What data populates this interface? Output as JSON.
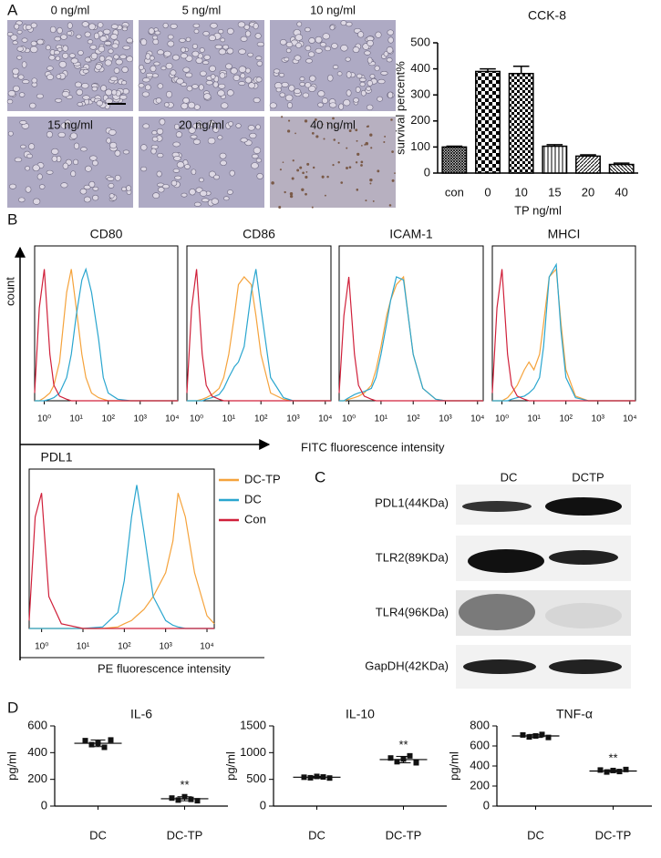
{
  "panel_labels": [
    "A",
    "B",
    "C",
    "D"
  ],
  "micrographs": {
    "labels": [
      "0 ng/ml",
      "5 ng/ml",
      "10 ng/ml",
      "15 ng/ml",
      "20 ng/ml",
      "40 ng/ml"
    ]
  },
  "flow_axes": {
    "y_label": "count",
    "x_label": "FITC fluorescence intensity"
  },
  "western_blot": {
    "lanes": [
      "DC",
      "DCTP"
    ],
    "rows": [
      "PDL1(44KDa)",
      "TLR2(89KDa)",
      "TLR4(96KDa)",
      "GapDH(42KDa)"
    ]
  },
  "chart_data": [
    {
      "type": "bar",
      "title": "CCK-8",
      "y_label": "survival percent%",
      "x_label": "TP ng/ml",
      "categories": [
        "con",
        "0",
        "10",
        "15",
        "20",
        "40"
      ],
      "values": [
        100,
        390,
        382,
        103,
        65,
        33
      ],
      "errors": [
        3,
        10,
        28,
        6,
        5,
        5
      ],
      "color": "#000000",
      "ylim": [
        0,
        500
      ],
      "yticks": [
        0,
        100,
        200,
        300,
        400,
        500
      ]
    },
    {
      "type": "line",
      "title": "CD80",
      "x_log": true,
      "xlim": [
        0.5,
        15000
      ],
      "xticks": [
        {
          "value": 1,
          "label": "10⁰"
        },
        {
          "value": 10,
          "label": "10¹"
        },
        {
          "value": 100,
          "label": "10²"
        },
        {
          "value": 1000,
          "label": "10³"
        },
        {
          "value": 10000,
          "label": "10⁴"
        }
      ],
      "ylim": [
        0,
        100
      ],
      "x": [
        0.5,
        0.7,
        1,
        1.5,
        2,
        3,
        5,
        7,
        10,
        15,
        20,
        30,
        50,
        70,
        100,
        200,
        500,
        1000,
        15000
      ],
      "series": [
        {
          "color": "#f5a33c",
          "values": [
            0,
            0,
            2,
            5,
            10,
            25,
            70,
            85,
            60,
            30,
            15,
            5,
            2,
            1,
            0,
            0,
            0,
            0,
            0
          ]
        },
        {
          "color": "#2aa6cf",
          "values": [
            0,
            0,
            0,
            1,
            2,
            5,
            15,
            30,
            55,
            78,
            85,
            70,
            40,
            15,
            5,
            1,
            0,
            0,
            0
          ]
        },
        {
          "color": "#d0203a",
          "values": [
            5,
            60,
            85,
            30,
            10,
            3,
            1,
            0,
            0,
            0,
            0,
            0,
            0,
            0,
            0,
            0,
            0,
            0,
            0
          ]
        }
      ]
    },
    {
      "type": "line",
      "title": "CD86",
      "x_log": true,
      "xlim": [
        0.5,
        15000
      ],
      "xticks": [
        {
          "value": 1,
          "label": "10⁰"
        },
        {
          "value": 10,
          "label": "10¹"
        },
        {
          "value": 100,
          "label": "10²"
        },
        {
          "value": 1000,
          "label": "10³"
        },
        {
          "value": 10000,
          "label": "10⁴"
        }
      ],
      "ylim": [
        0,
        100
      ],
      "x": [
        0.5,
        0.7,
        1,
        1.5,
        2,
        3,
        5,
        7,
        10,
        15,
        20,
        30,
        50,
        70,
        100,
        200,
        500,
        1000,
        15000
      ],
      "series": [
        {
          "color": "#f5a33c",
          "values": [
            0,
            0,
            0,
            1,
            2,
            4,
            8,
            15,
            30,
            55,
            75,
            80,
            75,
            55,
            30,
            5,
            1,
            0,
            0
          ]
        },
        {
          "color": "#2aa6cf",
          "values": [
            0,
            0,
            0,
            0,
            1,
            2,
            4,
            8,
            15,
            22,
            25,
            35,
            70,
            85,
            60,
            15,
            2,
            0,
            0
          ]
        },
        {
          "color": "#d0203a",
          "values": [
            5,
            60,
            85,
            30,
            10,
            3,
            1,
            0,
            0,
            0,
            0,
            0,
            0,
            0,
            0,
            0,
            0,
            0,
            0
          ]
        }
      ]
    },
    {
      "type": "line",
      "title": "ICAM-1",
      "x_log": true,
      "xlim": [
        0.5,
        15000
      ],
      "xticks": [
        {
          "value": 1,
          "label": "10⁰"
        },
        {
          "value": 10,
          "label": "10¹"
        },
        {
          "value": 100,
          "label": "10²"
        },
        {
          "value": 1000,
          "label": "10³"
        },
        {
          "value": 10000,
          "label": "10⁴"
        }
      ],
      "ylim": [
        0,
        100
      ],
      "x": [
        0.5,
        0.7,
        1,
        1.5,
        2,
        3,
        5,
        7,
        10,
        15,
        20,
        30,
        50,
        70,
        100,
        200,
        500,
        1000,
        15000
      ],
      "series": [
        {
          "color": "#f5a33c",
          "values": [
            0,
            0,
            1,
            2,
            3,
            5,
            10,
            20,
            35,
            55,
            65,
            75,
            80,
            55,
            30,
            8,
            1,
            0,
            0
          ]
        },
        {
          "color": "#2aa6cf",
          "values": [
            0,
            0,
            2,
            4,
            5,
            6,
            8,
            15,
            30,
            50,
            65,
            80,
            78,
            55,
            30,
            8,
            1,
            0,
            0
          ]
        },
        {
          "color": "#d0203a",
          "values": [
            5,
            55,
            80,
            30,
            10,
            3,
            1,
            0,
            0,
            0,
            0,
            0,
            0,
            0,
            0,
            0,
            0,
            0,
            0
          ]
        }
      ]
    },
    {
      "type": "line",
      "title": "MHCI",
      "x_log": true,
      "xlim": [
        0.5,
        15000
      ],
      "xticks": [
        {
          "value": 1,
          "label": "10⁰"
        },
        {
          "value": 10,
          "label": "10¹"
        },
        {
          "value": 100,
          "label": "10²"
        },
        {
          "value": 1000,
          "label": "10³"
        },
        {
          "value": 10000,
          "label": "10⁴"
        }
      ],
      "ylim": [
        0,
        100
      ],
      "x": [
        0.5,
        0.7,
        1,
        1.5,
        2,
        3,
        5,
        7,
        10,
        15,
        20,
        30,
        50,
        70,
        100,
        200,
        500,
        1000,
        15000
      ],
      "series": [
        {
          "color": "#f5a33c",
          "values": [
            0,
            0,
            0,
            2,
            5,
            10,
            20,
            25,
            20,
            30,
            50,
            80,
            85,
            50,
            20,
            3,
            0,
            0,
            0
          ]
        },
        {
          "color": "#2aa6cf",
          "values": [
            0,
            0,
            0,
            0,
            1,
            2,
            3,
            5,
            8,
            15,
            35,
            80,
            88,
            45,
            15,
            2,
            0,
            0,
            0
          ]
        },
        {
          "color": "#d0203a",
          "values": [
            5,
            60,
            85,
            30,
            10,
            3,
            1,
            0,
            0,
            0,
            0,
            0,
            0,
            0,
            0,
            0,
            0,
            0,
            0
          ]
        }
      ]
    },
    {
      "type": "line",
      "title": "PDL1",
      "x_label": "PE fluorescence intensity",
      "x_log": true,
      "xlim": [
        0.5,
        15000
      ],
      "xticks": [
        {
          "value": 1,
          "label": "10⁰"
        },
        {
          "value": 10,
          "label": "10¹"
        },
        {
          "value": 100,
          "label": "10²"
        },
        {
          "value": 1000,
          "label": "10³"
        },
        {
          "value": 10000,
          "label": "10⁴"
        }
      ],
      "ylim": [
        0,
        100
      ],
      "x": [
        0.5,
        0.7,
        1,
        1.5,
        3,
        10,
        30,
        70,
        100,
        150,
        200,
        300,
        500,
        1000,
        1500,
        2000,
        3000,
        5000,
        10000,
        15000
      ],
      "series": [
        {
          "name": "DC-TP",
          "color": "#f5a33c",
          "values": [
            0,
            0,
            0,
            0,
            0,
            0,
            0,
            1,
            3,
            5,
            8,
            12,
            20,
            35,
            55,
            85,
            70,
            35,
            8,
            3
          ]
        },
        {
          "name": "DC",
          "color": "#2aa6cf",
          "values": [
            0,
            0,
            0,
            0,
            0,
            0,
            1,
            10,
            30,
            70,
            90,
            60,
            20,
            5,
            2,
            1,
            0,
            0,
            0,
            0
          ]
        },
        {
          "name": "Con",
          "color": "#d0203a",
          "values": [
            5,
            70,
            85,
            20,
            3,
            0,
            0,
            0,
            0,
            0,
            0,
            0,
            0,
            0,
            0,
            0,
            0,
            0,
            0,
            0
          ]
        }
      ]
    },
    {
      "type": "dot",
      "title": "IL-6",
      "y_label": "pg/ml",
      "categories": [
        "DC",
        "DC-TP"
      ],
      "points": [
        [
          490,
          460,
          470,
          440,
          495
        ],
        [
          60,
          45,
          70,
          50,
          40
        ]
      ],
      "means": [
        470,
        55
      ],
      "sds": [
        25,
        15
      ],
      "annotation": "**",
      "ylim": [
        0,
        600
      ],
      "yticks": [
        0,
        200,
        400,
        600
      ]
    },
    {
      "type": "dot",
      "title": "IL-10",
      "y_label": "pg/ml",
      "categories": [
        "DC",
        "DC-TP"
      ],
      "points": [
        [
          540,
          530,
          555,
          545,
          525
        ],
        [
          900,
          830,
          880,
          940,
          810
        ]
      ],
      "means": [
        540,
        870
      ],
      "sds": [
        15,
        60
      ],
      "annotation": "**",
      "ylim": [
        0,
        1500
      ],
      "yticks": [
        0,
        500,
        1000,
        1500
      ]
    },
    {
      "type": "dot",
      "title": "TNF-α",
      "y_label": "pg/ml",
      "categories": [
        "DC",
        "DC-TP"
      ],
      "points": [
        [
          710,
          690,
          700,
          715,
          685
        ],
        [
          360,
          340,
          355,
          345,
          365
        ]
      ],
      "means": [
        700,
        350
      ],
      "sds": [
        15,
        12
      ],
      "annotation": "**",
      "ylim": [
        0,
        800
      ],
      "yticks": [
        0,
        200,
        400,
        600,
        800
      ]
    }
  ]
}
